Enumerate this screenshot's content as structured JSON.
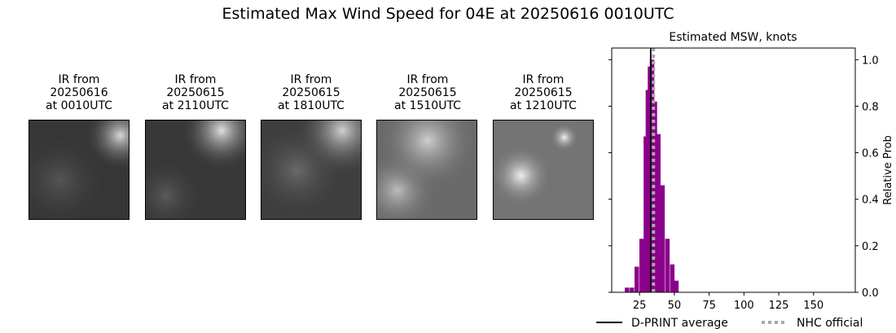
{
  "suptitle": "Estimated Max Wind Speed for 04E at 20250616 0010UTC",
  "ir_panels": [
    {
      "title": "IR from\n20250616\nat 0010UTC",
      "tone": "#3a3a3a"
    },
    {
      "title": "IR from\n20250615\nat 2110UTC",
      "tone": "#3d3d3d"
    },
    {
      "title": "IR from\n20250615\nat 1810UTC",
      "tone": "#454545"
    },
    {
      "title": "IR from\n20250615\nat 1510UTC",
      "tone": "#6e6e6e"
    },
    {
      "title": "IR from\n20250615\nat 1210UTC",
      "tone": "#7a7a7a"
    }
  ],
  "chart_data": {
    "type": "bar",
    "title": "Estimated MSW, knots",
    "ylabel": "Relative Prob",
    "xlim": [
      5,
      180
    ],
    "ylim": [
      0,
      1.05
    ],
    "xticks": [
      25,
      50,
      75,
      100,
      125,
      150
    ],
    "yticks": [
      0.0,
      0.2,
      0.4,
      0.6,
      0.8,
      1.0
    ],
    "ytick_labels": [
      "0.0",
      "0.2",
      "0.4",
      "0.6",
      "0.8",
      "1.0"
    ],
    "bin_width": 3.2,
    "bins": [
      {
        "x": 16,
        "value": 0.02
      },
      {
        "x": 19.5,
        "value": 0.02
      },
      {
        "x": 23,
        "value": 0.11
      },
      {
        "x": 26.5,
        "value": 0.23
      },
      {
        "x": 29.5,
        "value": 0.67
      },
      {
        "x": 31,
        "value": 0.87
      },
      {
        "x": 32.5,
        "value": 0.97
      },
      {
        "x": 34,
        "value": 1.0
      },
      {
        "x": 36,
        "value": 0.82
      },
      {
        "x": 38.5,
        "value": 0.68
      },
      {
        "x": 41.5,
        "value": 0.46
      },
      {
        "x": 45,
        "value": 0.23
      },
      {
        "x": 48.5,
        "value": 0.12
      },
      {
        "x": 51.5,
        "value": 0.05
      }
    ],
    "bar_color": "#8b008b",
    "dprint_average": 33,
    "nhc_official": 35,
    "legend": [
      {
        "label": "D-PRINT average",
        "style": "solid",
        "color": "#000000"
      },
      {
        "label": "NHC official",
        "style": "dotted",
        "color": "#a9a9a9"
      }
    ]
  }
}
